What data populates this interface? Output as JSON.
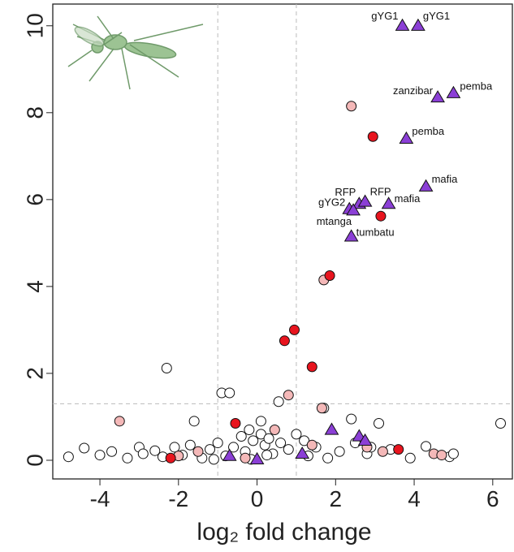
{
  "chart_data": {
    "type": "scatter",
    "x_label": "log₂ fold change",
    "xlim": [
      -5.2,
      6.5
    ],
    "ylim": [
      -0.43,
      10.5
    ],
    "xticks": [
      -4,
      -2,
      0,
      2,
      4,
      6
    ],
    "yticks": [
      0,
      2,
      4,
      6,
      8,
      10
    ],
    "vlines": [
      -1,
      1
    ],
    "hline": 1.3,
    "series": [
      {
        "color": "#ffffff",
        "marker": "circle",
        "x": [
          -2.3,
          -0.9,
          -0.7,
          0.55,
          1.7,
          6.2,
          -1.6,
          -3.0,
          -4.8,
          -4.4,
          -4.0,
          -3.7,
          -3.3,
          -2.9,
          -2.6,
          -2.4,
          -2.1,
          -1.9,
          -1.7,
          -1.4,
          -1.2,
          -1.0,
          -0.8,
          -0.6,
          -0.4,
          -0.3,
          -0.2,
          -0.1,
          0.1,
          0.2,
          0.3,
          0.4,
          0.6,
          0.8,
          1.0,
          1.3,
          1.5,
          1.8,
          2.1,
          2.4,
          2.8,
          3.1,
          3.4,
          3.9,
          4.3,
          4.9,
          5.0,
          2.5,
          2.9,
          0.1,
          -0.15,
          0.25,
          -1.1,
          1.2
        ],
        "y": [
          2.12,
          1.55,
          1.55,
          1.35,
          1.2,
          0.85,
          0.9,
          0.3,
          0.08,
          0.28,
          0.12,
          0.2,
          0.05,
          0.15,
          0.22,
          0.08,
          0.3,
          0.12,
          0.35,
          0.05,
          0.25,
          0.4,
          0.1,
          0.3,
          0.55,
          0.2,
          0.7,
          0.45,
          0.6,
          0.35,
          0.5,
          0.15,
          0.4,
          0.25,
          0.6,
          0.1,
          0.3,
          0.05,
          0.2,
          0.95,
          0.15,
          0.85,
          0.25,
          0.05,
          0.32,
          0.08,
          0.15,
          0.4,
          0.3,
          0.9,
          0.02,
          0.12,
          0.02,
          0.45
        ]
      },
      {
        "color": "#f4b8b8",
        "marker": "circle",
        "x": [
          2.4,
          1.7,
          0.8,
          -3.5,
          1.65,
          2.8,
          4.5,
          -1.5,
          0.45,
          -2.0,
          3.2,
          4.7,
          -0.3,
          1.4
        ],
        "y": [
          8.15,
          4.15,
          1.5,
          0.9,
          1.2,
          0.3,
          0.15,
          0.2,
          0.7,
          0.1,
          0.2,
          0.12,
          0.05,
          0.35
        ]
      },
      {
        "color": "#e8141e",
        "marker": "circle",
        "x": [
          2.95,
          3.15,
          1.85,
          0.95,
          0.7,
          1.4,
          -0.55,
          3.6,
          -2.2
        ],
        "y": [
          7.45,
          5.62,
          4.25,
          3.0,
          2.75,
          2.15,
          0.85,
          0.25,
          0.05
        ]
      },
      {
        "color": "#8b3fd6",
        "marker": "triangle",
        "x": [
          3.7,
          4.1,
          4.6,
          5.0,
          3.8,
          4.3,
          2.6,
          2.75,
          3.35,
          2.35,
          2.45,
          2.4,
          1.9,
          2.6,
          2.75,
          -0.7,
          0.0,
          1.15
        ],
        "y": [
          10.0,
          10.0,
          8.35,
          8.45,
          7.4,
          6.3,
          5.9,
          5.95,
          5.9,
          5.78,
          5.75,
          5.15,
          0.7,
          0.55,
          0.45,
          0.1,
          0.02,
          0.15
        ],
        "labels": [
          "gYG1",
          "gYG1",
          "zanzibar",
          "pemba",
          "pemba",
          "mafia",
          "RFP",
          "RFP",
          "mafia",
          "gYG2",
          "mtanga",
          "tumbatu",
          null,
          null,
          null,
          null,
          null,
          null
        ]
      }
    ]
  }
}
